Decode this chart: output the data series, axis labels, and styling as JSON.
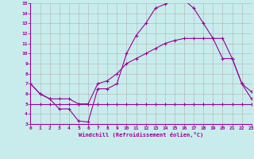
{
  "xlabel": "Windchill (Refroidissement éolien,°C)",
  "xlim": [
    0,
    23
  ],
  "ylim": [
    3,
    15
  ],
  "xticks": [
    0,
    1,
    2,
    3,
    4,
    5,
    6,
    7,
    8,
    9,
    10,
    11,
    12,
    13,
    14,
    15,
    16,
    17,
    18,
    19,
    20,
    21,
    22,
    23
  ],
  "yticks": [
    3,
    4,
    5,
    6,
    7,
    8,
    9,
    10,
    11,
    12,
    13,
    14,
    15
  ],
  "bg_color": "#c8ecec",
  "line_color": "#990099",
  "grid_color": "#b0b0b0",
  "line1_x": [
    0,
    1,
    2,
    3,
    4,
    5,
    6,
    7,
    8,
    9,
    10,
    11,
    12,
    13,
    14,
    15,
    16,
    17,
    18,
    19,
    20,
    21,
    22,
    23
  ],
  "line1_y": [
    7.0,
    6.0,
    5.5,
    4.5,
    4.5,
    3.3,
    3.2,
    6.5,
    6.5,
    7.0,
    10.0,
    11.8,
    13.0,
    14.5,
    14.9,
    15.3,
    15.3,
    14.5,
    13.0,
    11.5,
    9.5,
    9.5,
    7.0,
    6.2
  ],
  "line2_x": [
    0,
    1,
    2,
    3,
    4,
    5,
    6,
    7,
    8,
    9,
    10,
    11,
    12,
    13,
    14,
    15,
    16,
    17,
    18,
    19,
    20,
    21,
    22,
    23
  ],
  "line2_y": [
    7.0,
    6.0,
    5.5,
    5.5,
    5.5,
    5.0,
    5.0,
    7.0,
    7.3,
    8.0,
    9.0,
    9.5,
    10.0,
    10.5,
    11.0,
    11.3,
    11.5,
    11.5,
    11.5,
    11.5,
    11.5,
    9.5,
    7.0,
    5.5
  ],
  "line3_x": [
    0,
    1,
    2,
    3,
    4,
    5,
    6,
    7,
    8,
    9,
    10,
    11,
    12,
    13,
    14,
    15,
    16,
    17,
    18,
    19,
    20,
    21,
    22,
    23
  ],
  "line3_y": [
    5.0,
    5.0,
    5.0,
    5.0,
    5.0,
    5.0,
    5.0,
    5.0,
    5.0,
    5.0,
    5.0,
    5.0,
    5.0,
    5.0,
    5.0,
    5.0,
    5.0,
    5.0,
    5.0,
    5.0,
    5.0,
    5.0,
    5.0,
    5.0
  ]
}
